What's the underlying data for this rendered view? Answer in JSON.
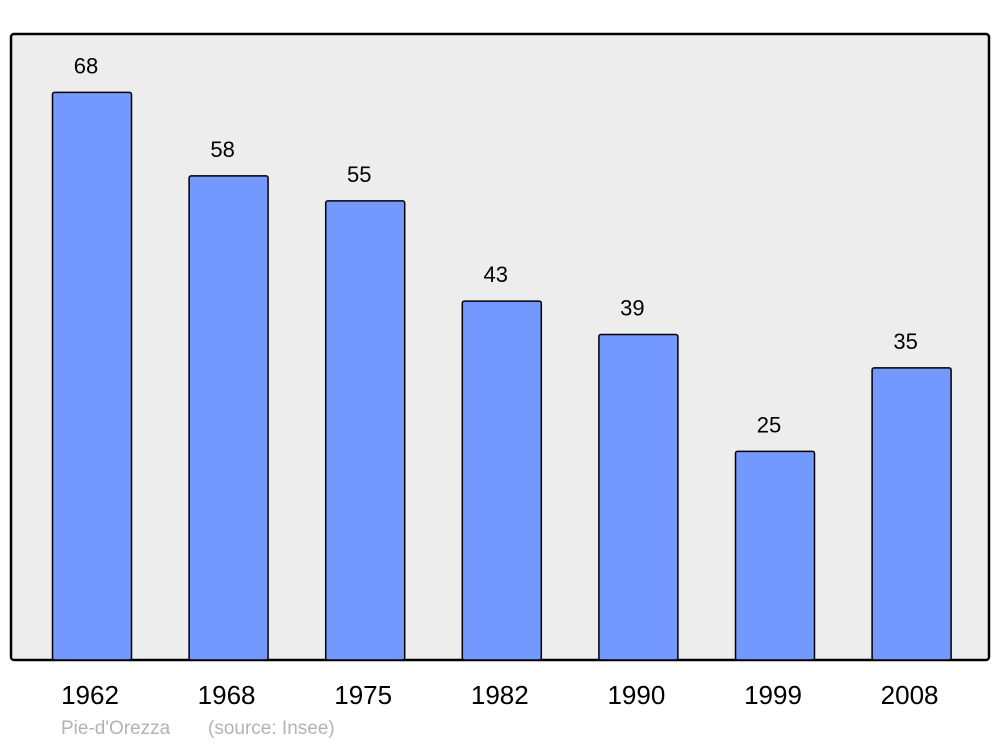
{
  "chart_data": {
    "type": "bar",
    "categories": [
      "1962",
      "1968",
      "1975",
      "1982",
      "1990",
      "1999",
      "2008"
    ],
    "values": [
      68,
      58,
      55,
      43,
      39,
      25,
      35
    ],
    "title": "",
    "xlabel": "",
    "ylabel": "",
    "ylim": [
      0,
      75
    ],
    "grid": false,
    "bar_color": "#7399ff",
    "plot_background": "#ededed"
  },
  "footer": {
    "place": "Pie-d'Orezza",
    "source": "(source: Insee)"
  }
}
